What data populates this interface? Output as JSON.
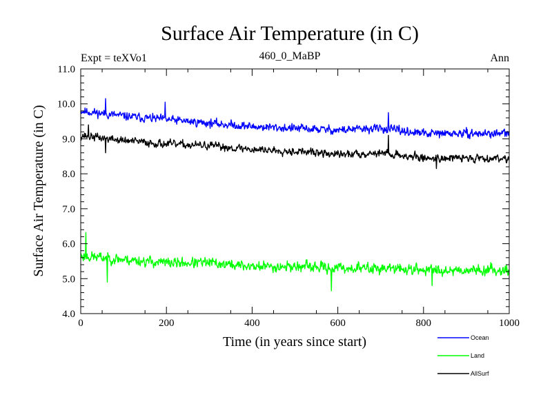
{
  "chart_data": {
    "type": "line",
    "title": "Surface Air Temperature (in C)",
    "subtitle_left": "Expt = teXVo1",
    "subtitle_center": "460_0_MaBP",
    "subtitle_right": "Ann",
    "xlabel": "Time (in years since start)",
    "ylabel": "Surface Air Temperature (in C)",
    "xlim": [
      0,
      1000
    ],
    "ylim": [
      4.0,
      11.0
    ],
    "xticks": [
      0,
      200,
      400,
      600,
      800,
      1000
    ],
    "xtick_labels": [
      "0",
      "200",
      "400",
      "600",
      "800",
      "1000"
    ],
    "yticks": [
      4.0,
      5.0,
      6.0,
      7.0,
      8.0,
      9.0,
      10.0,
      11.0
    ],
    "ytick_labels": [
      "4.0",
      "5.0",
      "6.0",
      "7.0",
      "8.0",
      "9.0",
      "10.0",
      "11.0"
    ],
    "legend_position": "bottom-right, below plot",
    "series": [
      {
        "name": "Ocean",
        "color": "#0000ff",
        "trend": [
          [
            0,
            9.8
          ],
          [
            100,
            9.65
          ],
          [
            200,
            9.55
          ],
          [
            300,
            9.45
          ],
          [
            400,
            9.35
          ],
          [
            500,
            9.3
          ],
          [
            600,
            9.25
          ],
          [
            700,
            9.3
          ],
          [
            800,
            9.15
          ],
          [
            900,
            9.15
          ],
          [
            1000,
            9.15
          ]
        ],
        "noise": 0.16,
        "seed": 11,
        "spikes": [
          [
            58,
            10.15
          ],
          [
            197,
            10.05
          ],
          [
            718,
            9.75
          ]
        ]
      },
      {
        "name": "Land",
        "color": "#00ff00",
        "trend": [
          [
            0,
            5.65
          ],
          [
            100,
            5.55
          ],
          [
            200,
            5.45
          ],
          [
            300,
            5.45
          ],
          [
            400,
            5.35
          ],
          [
            500,
            5.35
          ],
          [
            600,
            5.3
          ],
          [
            700,
            5.3
          ],
          [
            800,
            5.25
          ],
          [
            900,
            5.25
          ],
          [
            1000,
            5.25
          ]
        ],
        "noise": 0.2,
        "seed": 23,
        "spikes": [
          [
            12,
            6.32
          ],
          [
            62,
            4.9
          ],
          [
            585,
            4.65
          ],
          [
            820,
            4.8
          ]
        ]
      },
      {
        "name": "AllSurf",
        "color": "#000000",
        "trend": [
          [
            0,
            9.1
          ],
          [
            100,
            8.95
          ],
          [
            200,
            8.85
          ],
          [
            300,
            8.8
          ],
          [
            400,
            8.7
          ],
          [
            500,
            8.65
          ],
          [
            600,
            8.55
          ],
          [
            700,
            8.6
          ],
          [
            800,
            8.45
          ],
          [
            900,
            8.45
          ],
          [
            1000,
            8.45
          ]
        ],
        "noise": 0.15,
        "seed": 37,
        "spikes": [
          [
            18,
            9.4
          ],
          [
            58,
            8.6
          ],
          [
            718,
            9.1
          ],
          [
            830,
            8.15
          ]
        ]
      }
    ]
  }
}
